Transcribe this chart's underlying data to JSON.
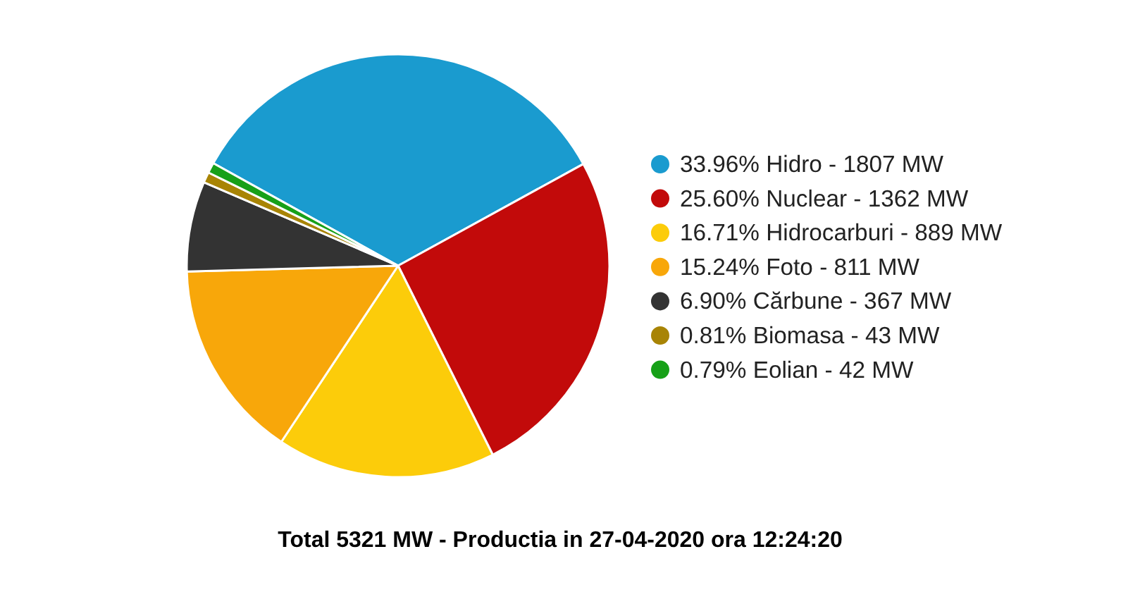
{
  "chart_data": {
    "type": "pie",
    "title": "Total 5321 MW - Productia in 27-04-2020 ora 12:24:20",
    "categories": [
      "33.96% Hidro - 1807 MW",
      "25.60% Nuclear - 1362 MW",
      "16.71% Hidrocarburi - 889 MW",
      "15.24% Foto - 811 MW",
      "6.90% Cărbune - 367 MW",
      "0.81% Biomasa - 43 MW",
      "0.79% Eolian - 42 MW"
    ],
    "values": [
      33.96,
      25.6,
      16.71,
      15.24,
      6.9,
      0.81,
      0.79
    ],
    "colors": [
      "#1a9bcf",
      "#c20a0a",
      "#fccc0a",
      "#f8a70a",
      "#333333",
      "#a88405",
      "#17a018"
    ],
    "legend": "right"
  }
}
